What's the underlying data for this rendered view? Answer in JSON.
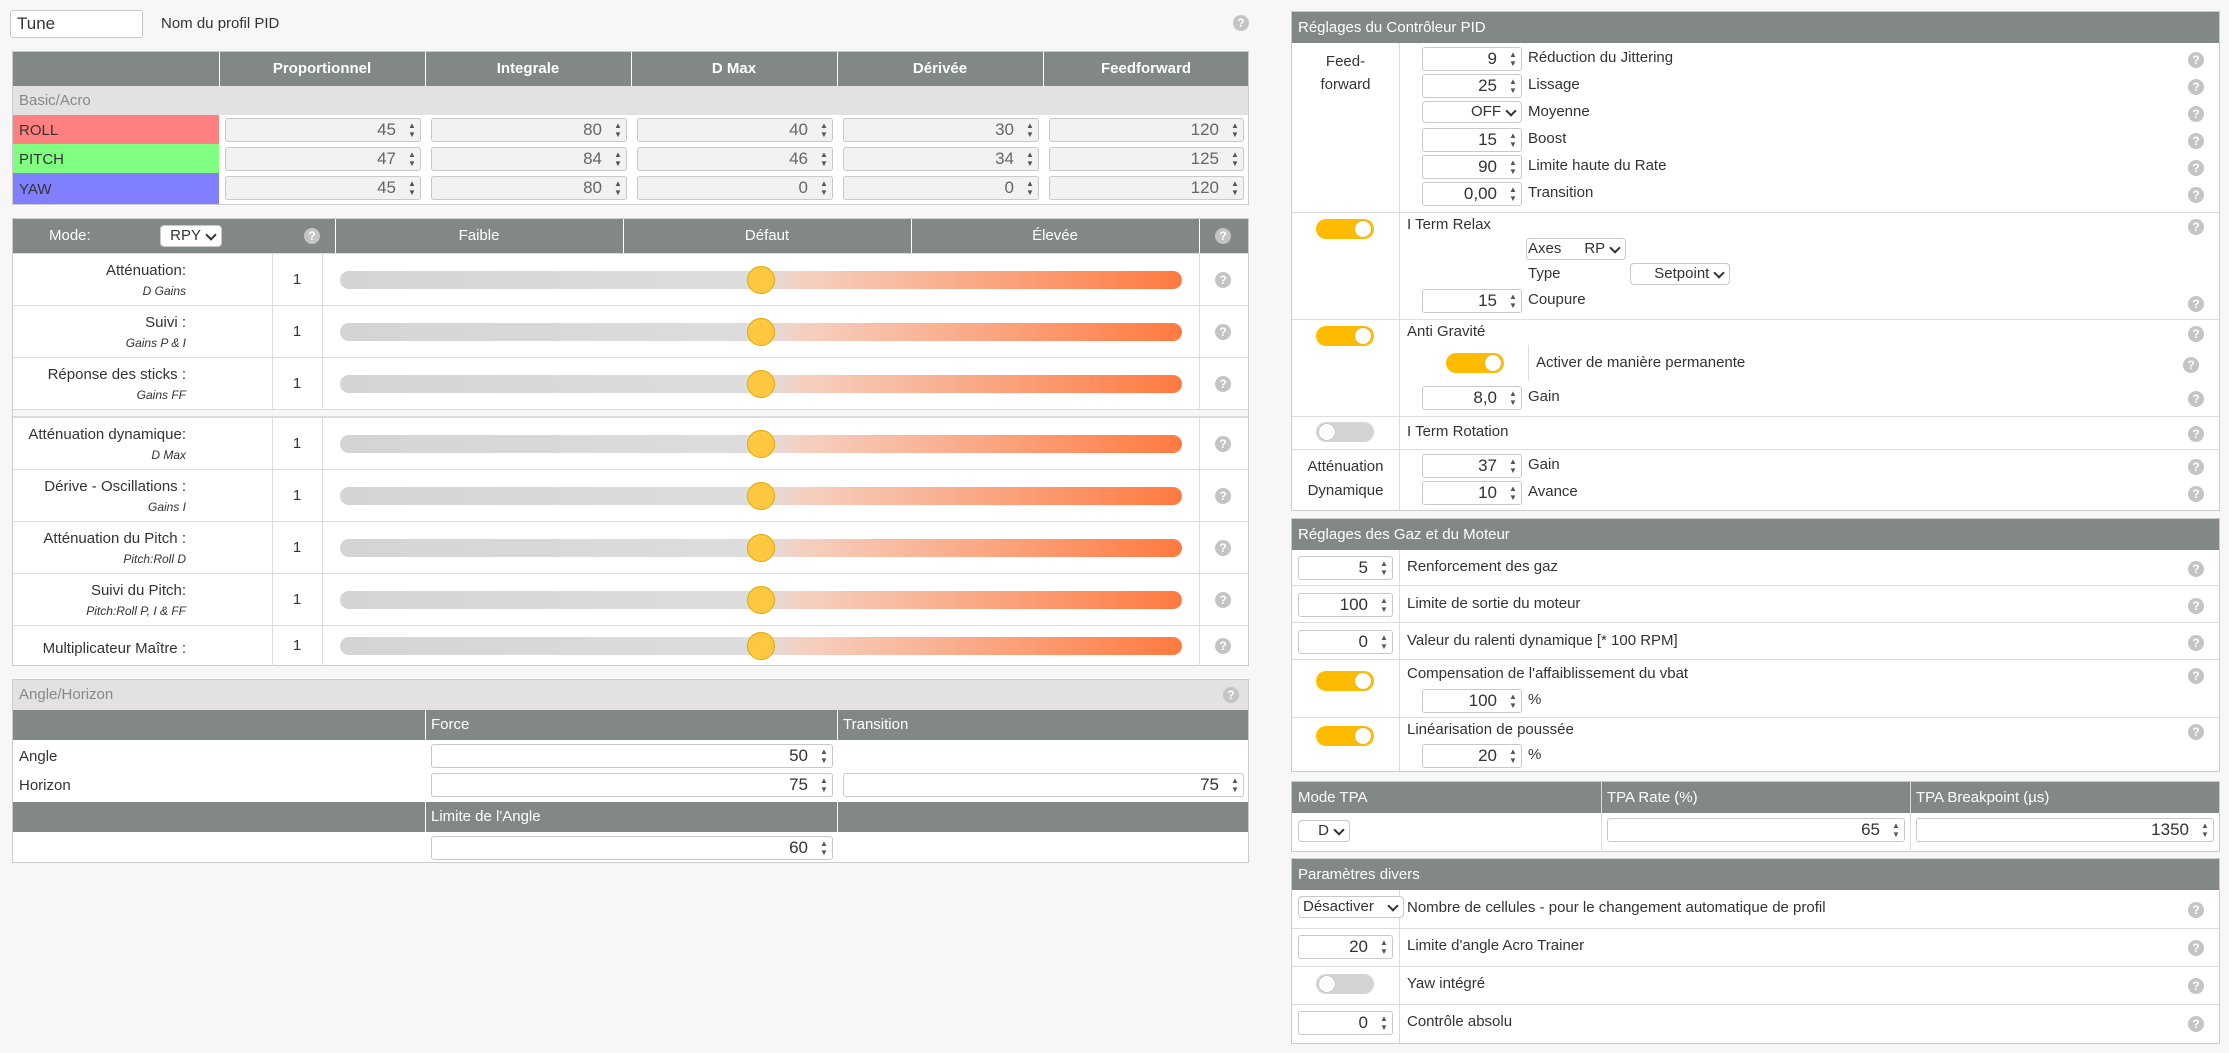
{
  "profile": {
    "name_value": "Tune",
    "name_label": "Nom du profil PID"
  },
  "pid_table": {
    "headers": [
      "Proportionnel",
      "Integrale",
      "D Max",
      "Dérivée",
      "Feedforward"
    ],
    "section": "Basic/Acro",
    "rows": [
      {
        "axis": "ROLL",
        "color": "#ff8080",
        "values": [
          "45",
          "80",
          "40",
          "30",
          "120"
        ]
      },
      {
        "axis": "PITCH",
        "color": "#80ff80",
        "values": [
          "47",
          "84",
          "46",
          "34",
          "125"
        ]
      },
      {
        "axis": "YAW",
        "color": "#8080ff",
        "values": [
          "45",
          "80",
          "0",
          "0",
          "120"
        ]
      }
    ]
  },
  "sliders": {
    "mode_label": "Mode:",
    "mode_value": "RPY",
    "col_low": "Faible",
    "col_default": "Défaut",
    "col_high": "Élevée",
    "rows": [
      {
        "label": "Atténuation:",
        "sub": "D Gains",
        "value": "1",
        "level": 0.5
      },
      {
        "label": "Suivi :",
        "sub": "Gains P & I",
        "value": "1",
        "level": 0.5
      },
      {
        "label": "Réponse des sticks :",
        "sub": "Gains FF",
        "value": "1",
        "level": 0.5
      },
      {
        "label": "Atténuation dynamique:",
        "sub": "D Max",
        "value": "1",
        "level": 0.5
      },
      {
        "label": "Dérive - Oscillations :",
        "sub": "Gains I",
        "value": "1",
        "level": 0.5
      },
      {
        "label": "Atténuation du Pitch :",
        "sub": "Pitch:Roll D",
        "value": "1",
        "level": 0.5
      },
      {
        "label": "Suivi du Pitch:",
        "sub": "Pitch:Roll P, I & FF",
        "value": "1",
        "level": 0.5
      },
      {
        "label": "Multiplicateur Maître :",
        "sub": "",
        "value": "1",
        "level": 0.5
      }
    ]
  },
  "angle": {
    "title": "Angle/Horizon",
    "col_force": "Force",
    "col_transition": "Transition",
    "row_angle": "Angle",
    "row_horizon": "Horizon",
    "angle_force": "50",
    "horizon_force": "75",
    "horizon_transition": "75",
    "limit_label": "Limite de l'Angle",
    "limit_value": "60"
  },
  "pid_controller": {
    "title": "Réglages du Contrôleur PID",
    "ff_label1": "Feed-",
    "ff_label2": "forward",
    "jitter": {
      "value": "9",
      "label": "Réduction du Jittering"
    },
    "smooth": {
      "value": "25",
      "label": "Lissage"
    },
    "average": {
      "value": "OFF",
      "label": "Moyenne"
    },
    "boost": {
      "value": "15",
      "label": "Boost"
    },
    "maxrate": {
      "value": "90",
      "label": "Limite haute du Rate"
    },
    "transition": {
      "value": "0,00",
      "label": "Transition"
    },
    "iterm_relax": {
      "label": "I Term Relax",
      "axes_value": "RP",
      "axes_label": "Axes",
      "type_value": "Setpoint",
      "type_label": "Type",
      "cutoff_value": "15",
      "cutoff_label": "Coupure"
    },
    "anti_gravity": {
      "label": "Anti Gravité",
      "perm_label": "Activer de manière permanente",
      "gain_value": "8,0",
      "gain_label": "Gain"
    },
    "iterm_rotation": {
      "label": "I Term Rotation"
    },
    "dyn_damp": {
      "label1": "Atténuation",
      "label2": "Dynamique",
      "gain_value": "37",
      "gain_label": "Gain",
      "advance_value": "10",
      "advance_label": "Avance"
    }
  },
  "throttle": {
    "title": "Réglages des Gaz et du Moteur",
    "boost": {
      "value": "5",
      "label": "Renforcement des gaz"
    },
    "motor_limit": {
      "value": "100",
      "label": "Limite de sortie du moteur"
    },
    "dyn_idle": {
      "value": "0",
      "label": "Valeur du ralenti dynamique [* 100 RPM]"
    },
    "vbat": {
      "label": "Compensation de l'affaiblissement du vbat",
      "value": "100",
      "unit": "%"
    },
    "thrust": {
      "label": "Linéarisation de poussée",
      "value": "20",
      "unit": "%"
    }
  },
  "tpa": {
    "col_mode": "Mode TPA",
    "col_rate": "TPA Rate (%)",
    "col_bp": "TPA Breakpoint (µs)",
    "mode": "D",
    "rate": "65",
    "breakpoint": "1350"
  },
  "misc": {
    "title": "Paramètres divers",
    "cells": {
      "value": "Désactiver",
      "label": "Nombre de cellules - pour le changement automatique de profil"
    },
    "acro_trainer": {
      "value": "20",
      "label": "Limite d'angle Acro Trainer"
    },
    "yaw": {
      "label": "Yaw intégré"
    },
    "abs": {
      "value": "0",
      "label": "Contrôle absolu"
    }
  }
}
